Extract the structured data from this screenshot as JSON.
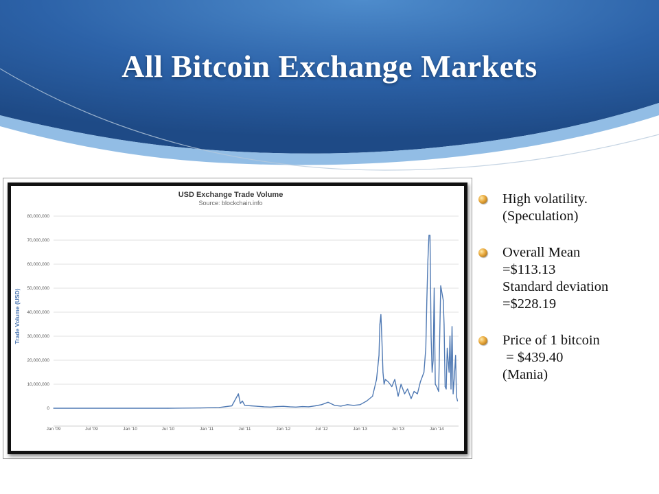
{
  "slide": {
    "title": "All Bitcoin Exchange Markets",
    "bullets": [
      {
        "lines": [
          "High volatility.",
          "(Speculation)"
        ],
        "icon": "bullet-ball-icon"
      },
      {
        "lines": [
          "Overall Mean",
          "=$113.13",
          "Standard deviation",
          "=$228.19"
        ],
        "icon": "bullet-ball-icon"
      },
      {
        "lines": [
          "Price of 1 bitcoin",
          " = $439.40",
          "(Mania)"
        ],
        "icon": "bullet-ball-icon"
      }
    ]
  },
  "colors": {
    "banner_dark": "#1e4a86",
    "banner_light": "#4e8ccc",
    "line": "#4f79b3"
  },
  "chart_data": {
    "type": "line",
    "title": "USD Exchange Trade Volume",
    "subtitle": "Source: blockchain.info",
    "ylabel": "Trade Volume (USD)",
    "xlabel": "",
    "ylim": [
      0,
      80000000
    ],
    "yticks": [
      0,
      10000000,
      20000000,
      30000000,
      40000000,
      50000000,
      60000000,
      70000000,
      80000000
    ],
    "ytick_labels": [
      "0",
      "10,000,000",
      "20,000,000",
      "30,000,000",
      "40,000,000",
      "50,000,000",
      "60,000,000",
      "70,000,000",
      "80,000,000"
    ],
    "xtick_labels": [
      "Jan '09",
      "Jul '09",
      "Jan '10",
      "Jul '10",
      "Jan '11",
      "Jul '11",
      "Jan '12",
      "Jul '12",
      "Jan '13",
      "Jul '13",
      "Jan '14"
    ],
    "xlim": [
      "2009-01-01",
      "2014-04-15"
    ],
    "grid": true,
    "legend": "none",
    "series": [
      {
        "x": [
          "2009-01-01",
          "2010-07-01",
          "2010-12-01",
          "2011-03-01",
          "2011-05-01",
          "2011-06-01",
          "2011-06-10",
          "2011-06-20",
          "2011-07-01",
          "2011-08-01",
          "2011-09-01",
          "2011-10-01",
          "2011-11-01",
          "2011-12-01",
          "2012-01-01",
          "2012-02-01",
          "2012-03-01",
          "2012-04-01",
          "2012-05-01",
          "2012-06-01",
          "2012-07-01",
          "2012-08-01",
          "2012-09-01",
          "2012-10-01",
          "2012-11-01",
          "2012-12-01",
          "2013-01-01",
          "2013-02-01",
          "2013-03-01",
          "2013-03-20",
          "2013-04-01",
          "2013-04-05",
          "2013-04-10",
          "2013-04-15",
          "2013-04-20",
          "2013-04-25",
          "2013-05-01",
          "2013-05-15",
          "2013-06-01",
          "2013-06-15",
          "2013-07-01",
          "2013-07-15",
          "2013-08-01",
          "2013-08-15",
          "2013-09-01",
          "2013-09-15",
          "2013-10-01",
          "2013-10-15",
          "2013-11-01",
          "2013-11-10",
          "2013-11-15",
          "2013-11-20",
          "2013-11-25",
          "2013-11-30",
          "2013-12-05",
          "2013-12-10",
          "2013-12-15",
          "2013-12-20",
          "2013-12-25",
          "2014-01-01",
          "2014-01-10",
          "2014-01-20",
          "2014-02-01",
          "2014-02-05",
          "2014-02-10",
          "2014-02-15",
          "2014-02-20",
          "2014-03-01",
          "2014-03-05",
          "2014-03-10",
          "2014-03-15",
          "2014-03-20",
          "2014-03-25",
          "2014-04-01",
          "2014-04-05",
          "2014-04-10"
        ],
        "values": [
          0,
          0,
          100000,
          300000,
          1000000,
          6000000,
          2000000,
          3000000,
          1200000,
          1000000,
          800000,
          600000,
          500000,
          700000,
          800000,
          600000,
          500000,
          700000,
          600000,
          1000000,
          1500000,
          2500000,
          1200000,
          900000,
          1500000,
          1200000,
          1500000,
          3000000,
          5000000,
          12000000,
          22000000,
          35000000,
          39000000,
          28000000,
          15000000,
          10000000,
          12000000,
          11000000,
          9000000,
          12000000,
          5000000,
          10000000,
          6000000,
          8000000,
          4000000,
          7000000,
          6000000,
          11000000,
          15000000,
          25000000,
          45000000,
          62000000,
          72000000,
          72000000,
          30000000,
          15000000,
          20000000,
          50000000,
          10000000,
          9000000,
          7000000,
          51000000,
          45000000,
          35000000,
          9000000,
          8000000,
          25000000,
          15000000,
          30000000,
          8000000,
          34000000,
          6000000,
          12000000,
          22000000,
          5000000,
          3000000
        ]
      }
    ]
  }
}
